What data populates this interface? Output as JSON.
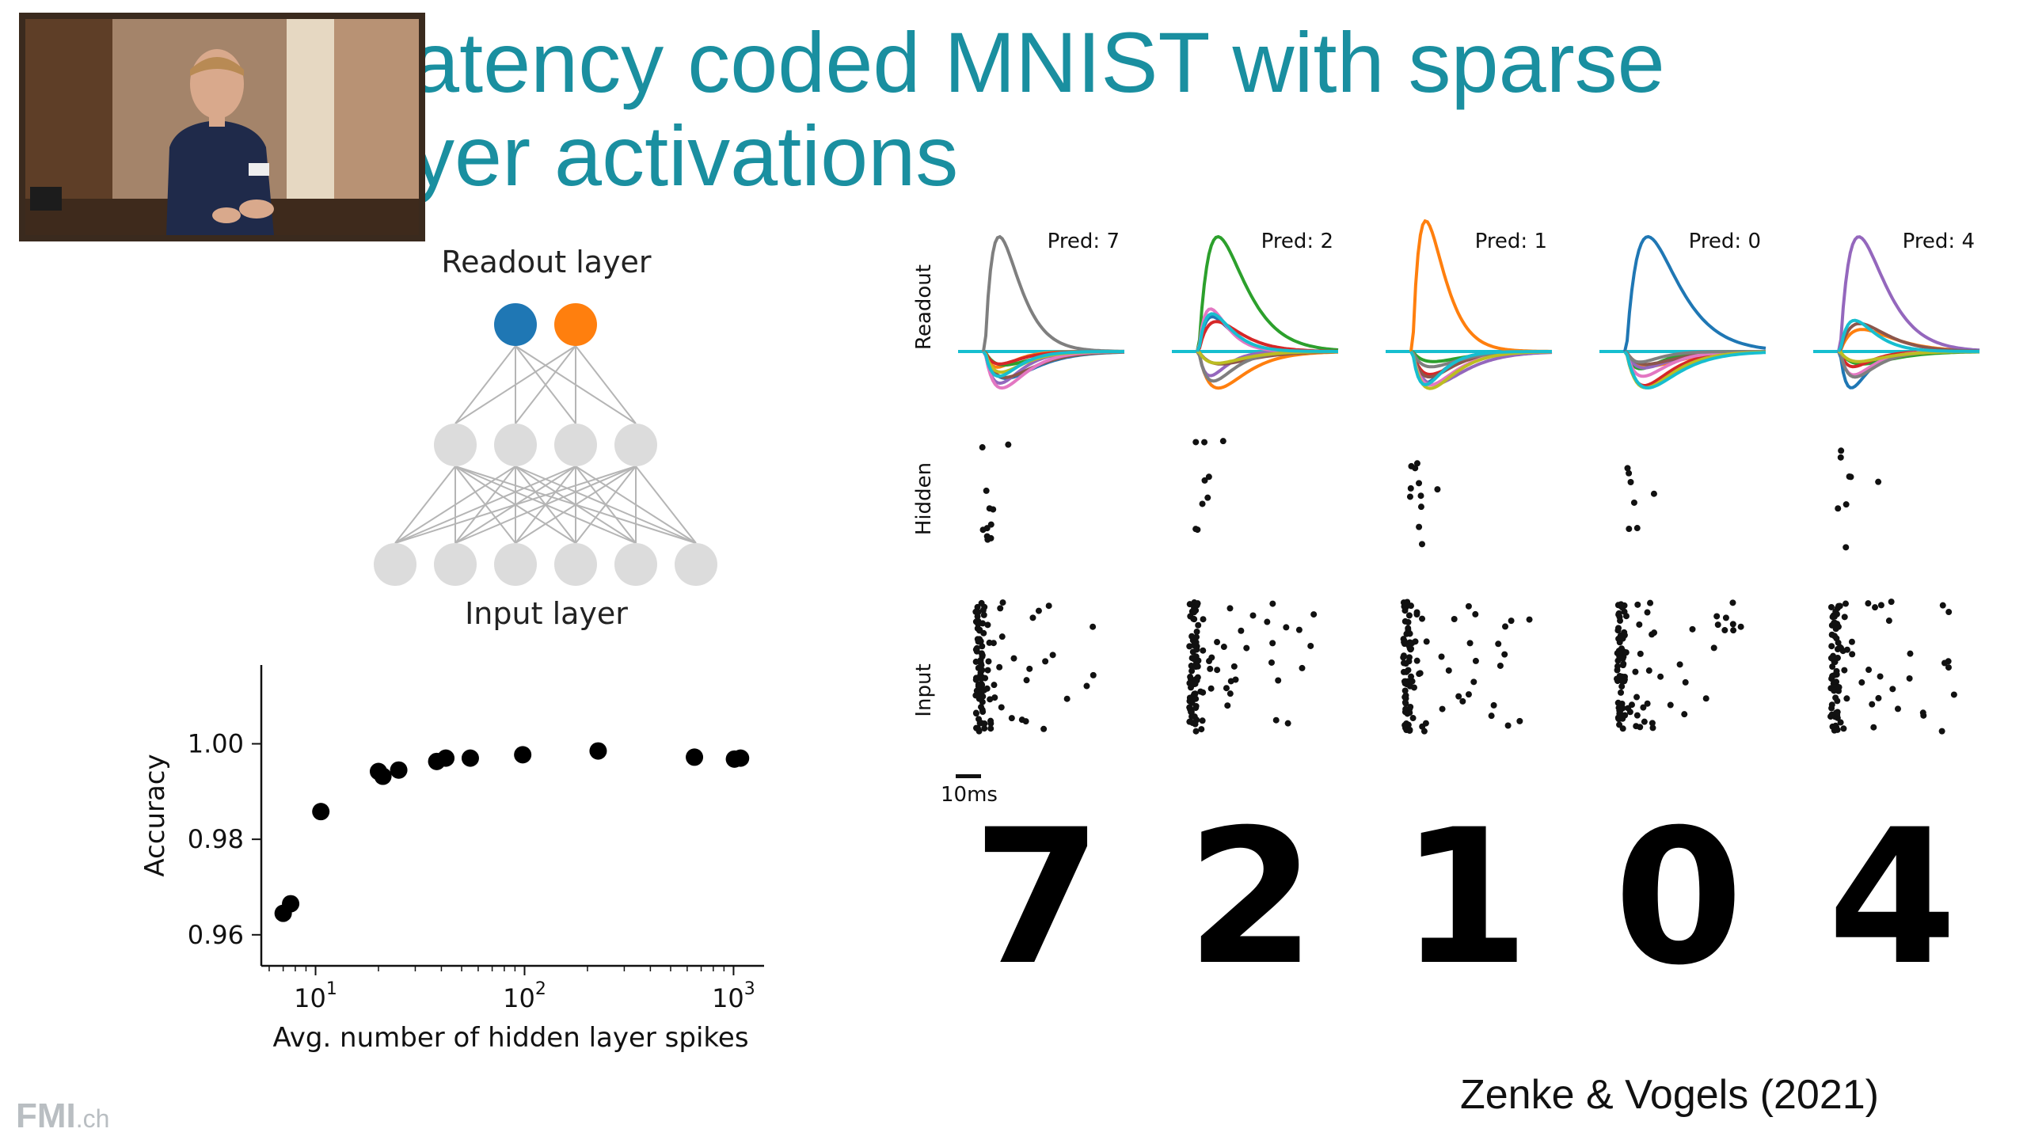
{
  "slide": {
    "title_line1": "atency coded MNIST with sparse",
    "title_line2": "yer activations",
    "citation": "Zenke & Vogels (2021)",
    "logo_main": "FMI",
    "logo_suffix": ".ch"
  },
  "network": {
    "readout_label": "Readout layer",
    "input_label": "Input layer",
    "readout_colors": [
      "#1f77b4",
      "#ff7f0e"
    ]
  },
  "raster": {
    "row_labels": [
      "Readout",
      "Hidden",
      "Input"
    ],
    "predictions": [
      "Pred: 7",
      "Pred: 2",
      "Pred: 1",
      "Pred: 0",
      "Pred: 4"
    ],
    "digits": [
      "7",
      "2",
      "1",
      "0",
      "4"
    ],
    "scalebar_label": "10ms",
    "series_colors": [
      "#1f77b4",
      "#ff7f0e",
      "#2ca02c",
      "#d62728",
      "#9467bd",
      "#8c564b",
      "#e377c2",
      "#7f7f7f",
      "#bcbd22",
      "#17becf"
    ]
  },
  "chart_data": {
    "type": "scatter",
    "xlabel": "Avg. number of hidden layer spikes",
    "ylabel": "Accuracy",
    "xscale": "log",
    "xlim": [
      5.5,
      1400
    ],
    "ylim": [
      0.9535,
      1.0165
    ],
    "xticks": [
      {
        "value": 10,
        "base": "10",
        "exp": "1"
      },
      {
        "value": 100,
        "base": "10",
        "exp": "2"
      },
      {
        "value": 1000,
        "base": "10",
        "exp": "3"
      }
    ],
    "yticks": [
      {
        "value": 0.96,
        "label": "0.96"
      },
      {
        "value": 0.98,
        "label": "0.98"
      },
      {
        "value": 1.0,
        "label": "1.00"
      }
    ],
    "points": [
      {
        "x": 7.0,
        "y": 0.9645
      },
      {
        "x": 7.6,
        "y": 0.9665
      },
      {
        "x": 10.6,
        "y": 0.9858
      },
      {
        "x": 20,
        "y": 0.9942
      },
      {
        "x": 21,
        "y": 0.9932
      },
      {
        "x": 25,
        "y": 0.9945
      },
      {
        "x": 38,
        "y": 0.9963
      },
      {
        "x": 42,
        "y": 0.997
      },
      {
        "x": 55,
        "y": 0.997
      },
      {
        "x": 98,
        "y": 0.9977
      },
      {
        "x": 225,
        "y": 0.9985
      },
      {
        "x": 650,
        "y": 0.9972
      },
      {
        "x": 1010,
        "y": 0.9968
      },
      {
        "x": 1080,
        "y": 0.997
      }
    ]
  }
}
